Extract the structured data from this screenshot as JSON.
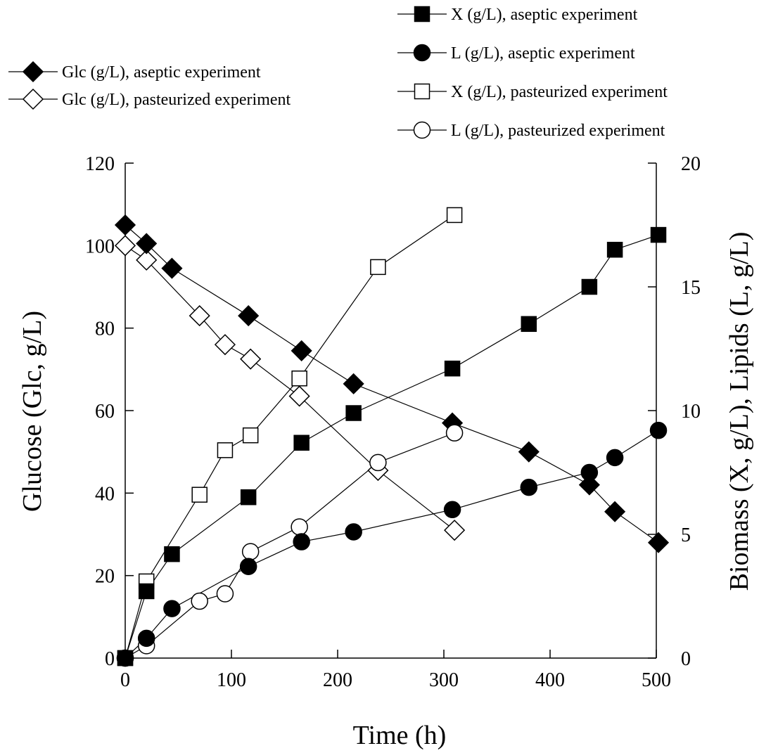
{
  "chart_data": {
    "type": "line",
    "xlabel": "Time (h)",
    "ylabel_left": "Glucose (Glc, g/L)",
    "ylabel_right": "Biomass (X, g/L), Lipids (L, g/L)",
    "xlim": [
      0,
      500
    ],
    "ylim_left": [
      0,
      120
    ],
    "ylim_right": [
      0,
      20
    ],
    "xticks": [
      "0",
      "100",
      "200",
      "300",
      "400",
      "500"
    ],
    "yticks_left": [
      "0",
      "20",
      "40",
      "60",
      "80",
      "100",
      "120"
    ],
    "yticks_right": [
      "0",
      "5",
      "10",
      "15",
      "20"
    ],
    "grid": false,
    "series": [
      {
        "name": "Glc (g/L), aseptic experiment",
        "axis": "left",
        "marker": "diamond",
        "filled": true,
        "x": [
          0,
          20,
          44,
          116,
          166,
          215,
          308,
          380,
          437,
          461,
          502
        ],
        "y": [
          105,
          100.5,
          94.5,
          83,
          74.5,
          66.5,
          57,
          50,
          42,
          35.5,
          28
        ]
      },
      {
        "name": "Glc (g/L), pasteurized experiment",
        "axis": "left",
        "marker": "diamond",
        "filled": false,
        "x": [
          0,
          20,
          70,
          94,
          118,
          164,
          238,
          310
        ],
        "y": [
          100,
          96.5,
          83,
          76,
          72.5,
          63.5,
          45.5,
          31
        ]
      },
      {
        "name": "X (g/L), aseptic experiment",
        "axis": "right",
        "marker": "square",
        "filled": true,
        "x": [
          0,
          20,
          44,
          116,
          166,
          215,
          308,
          380,
          437,
          461,
          502
        ],
        "y": [
          0,
          2.7,
          4.2,
          6.5,
          8.7,
          9.9,
          11.7,
          13.5,
          15,
          16.5,
          17.1
        ]
      },
      {
        "name": "L (g/L), aseptic experiment",
        "axis": "right",
        "marker": "circle",
        "filled": true,
        "x": [
          0,
          20,
          44,
          116,
          166,
          215,
          308,
          380,
          437,
          461,
          502
        ],
        "y": [
          0,
          0.8,
          2,
          3.7,
          4.7,
          5.1,
          6,
          6.9,
          7.5,
          8.1,
          9.2
        ]
      },
      {
        "name": "X (g/L), pasteurized experiment",
        "axis": "right",
        "marker": "square",
        "filled": false,
        "x": [
          0,
          20,
          70,
          94,
          118,
          164,
          238,
          310
        ],
        "y": [
          0,
          3.1,
          6.6,
          8.4,
          9,
          11.3,
          15.8,
          17.9
        ]
      },
      {
        "name": "L (g/L), pasteurized experiment",
        "axis": "right",
        "marker": "circle",
        "filled": false,
        "x": [
          0,
          20,
          70,
          94,
          118,
          164,
          238,
          310
        ],
        "y": [
          0,
          0.5,
          2.3,
          2.6,
          4.3,
          5.3,
          7.9,
          9.1
        ]
      }
    ]
  }
}
